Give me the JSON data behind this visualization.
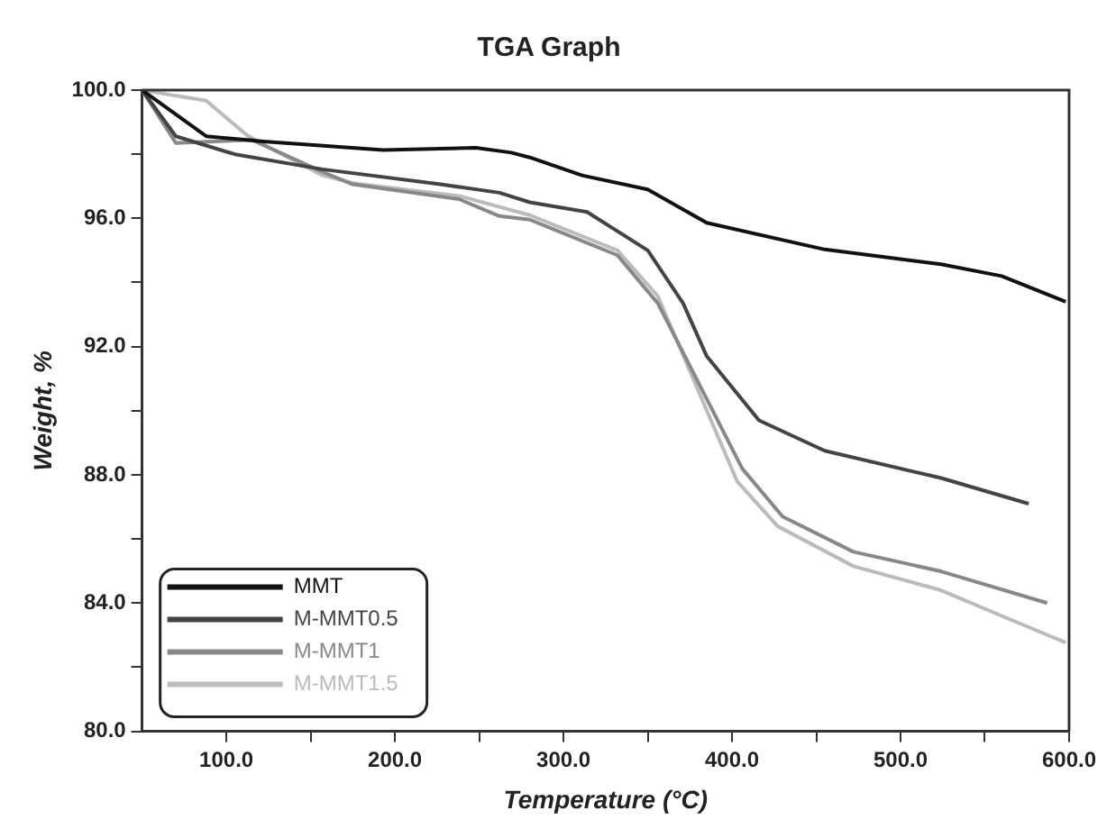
{
  "chart_data": {
    "type": "line",
    "title": "TGA Graph",
    "xlabel": "Temperature (°C)",
    "ylabel": "Weight, %",
    "xlim": [
      50,
      600
    ],
    "ylim": [
      80,
      100
    ],
    "xticks": [
      {
        "value": 100,
        "label": "100.0"
      },
      {
        "value": 150,
        "label": null
      },
      {
        "value": 200,
        "label": "200.0"
      },
      {
        "value": 250,
        "label": null
      },
      {
        "value": 300,
        "label": "300.0"
      },
      {
        "value": 350,
        "label": null
      },
      {
        "value": 400,
        "label": "400.0"
      },
      {
        "value": 450,
        "label": null
      },
      {
        "value": 500,
        "label": "500.0"
      },
      {
        "value": 550,
        "label": null
      },
      {
        "value": 600,
        "label": "600.0"
      }
    ],
    "yticks": [
      {
        "value": 80,
        "label": "80.0"
      },
      {
        "value": 82,
        "label": null
      },
      {
        "value": 84,
        "label": "84.0"
      },
      {
        "value": 86,
        "label": null
      },
      {
        "value": 88,
        "label": "88.0"
      },
      {
        "value": 90,
        "label": null
      },
      {
        "value": 92,
        "label": "92.0"
      },
      {
        "value": 94,
        "label": null
      },
      {
        "value": 96,
        "label": "96.0"
      },
      {
        "value": 98,
        "label": null
      },
      {
        "value": 100,
        "label": "100.0"
      }
    ],
    "grid": false,
    "legend": "bottom left",
    "marker": "none",
    "line_style": "solid",
    "series": [
      {
        "name": "MMT",
        "color": "#111111",
        "x": [
          50,
          88,
          122,
          193,
          248,
          269,
          280,
          311,
          350,
          385,
          455,
          524,
          560,
          598
        ],
        "values": [
          100,
          98.56,
          98.4,
          98.13,
          98.2,
          98.05,
          97.9,
          97.34,
          96.9,
          95.86,
          95.03,
          94.57,
          94.2,
          93.4
        ]
      },
      {
        "name": "M-MMT0.5",
        "color": "#444444",
        "x": [
          50,
          70,
          105,
          157,
          227,
          262,
          280,
          314,
          350,
          371,
          385,
          416,
          455,
          524,
          576
        ],
        "values": [
          100,
          98.56,
          98.0,
          97.53,
          97.06,
          96.8,
          96.5,
          96.2,
          95.0,
          93.35,
          91.7,
          89.7,
          88.75,
          87.9,
          87.1
        ]
      },
      {
        "name": "M-MMT1",
        "color": "#888888",
        "x": [
          50,
          70,
          115,
          157,
          175,
          238,
          262,
          280,
          332,
          356,
          374,
          406,
          430,
          472,
          524,
          587
        ],
        "values": [
          100,
          98.35,
          98.45,
          97.45,
          97.06,
          96.6,
          96.07,
          95.96,
          94.85,
          93.35,
          91.5,
          88.2,
          86.7,
          85.6,
          84.99,
          84.0
        ]
      },
      {
        "name": "M-MMT1.5",
        "color": "#bbbbbb",
        "x": [
          50,
          88,
          112,
          122,
          157,
          175,
          238,
          280,
          332,
          356,
          374,
          403,
          427,
          472,
          524,
          560,
          598
        ],
        "values": [
          100,
          99.67,
          98.6,
          98.3,
          97.34,
          97.1,
          96.7,
          96.1,
          95.0,
          93.57,
          91.36,
          87.8,
          86.4,
          85.15,
          84.4,
          83.6,
          82.77
        ]
      }
    ]
  }
}
